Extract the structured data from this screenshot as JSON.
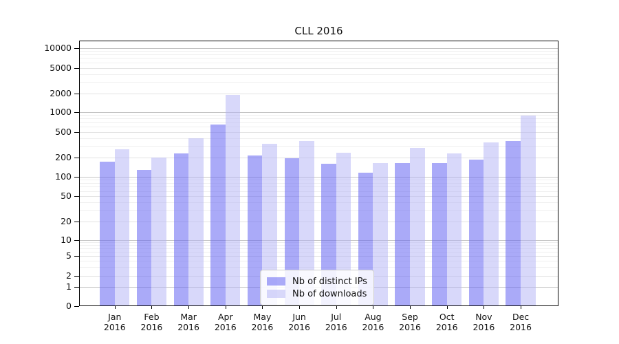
{
  "title": "CLL 2016",
  "chart_data": {
    "type": "bar",
    "title": "CLL 2016",
    "categories": [
      "Jan",
      "Feb",
      "Mar",
      "Apr",
      "May",
      "Jun",
      "Jul",
      "Aug",
      "Sep",
      "Oct",
      "Nov",
      "Dec"
    ],
    "year": "2016",
    "series": [
      {
        "name": "Nb of distinct IPs",
        "color": "#6464f2",
        "opacity": 0.55,
        "rendered_fill": "#aaaaf4",
        "values": [
          170,
          127,
          230,
          655,
          212,
          194,
          158,
          116,
          165,
          164,
          186,
          362
        ]
      },
      {
        "name": "Nb of downloads",
        "color": "#b1b1f5",
        "opacity": 0.5,
        "rendered_fill": "#d8d8f8",
        "values": [
          270,
          200,
          400,
          1870,
          330,
          365,
          237,
          164,
          280,
          230,
          346,
          885
        ]
      }
    ],
    "yticks": [
      0,
      1,
      2,
      5,
      10,
      20,
      50,
      100,
      200,
      500,
      1000,
      2000,
      5000,
      10000
    ],
    "yscale": "symlog",
    "ylim": [
      0,
      13000
    ],
    "xlabel": "",
    "ylabel": "",
    "grid": true,
    "legend": {
      "position": "lower center",
      "entries": [
        "Nb of distinct IPs",
        "Nb of downloads"
      ]
    },
    "grid_colors": {
      "major": "#c4c4c4",
      "mid": "#e2e2e2",
      "minor": "#efefef"
    }
  }
}
